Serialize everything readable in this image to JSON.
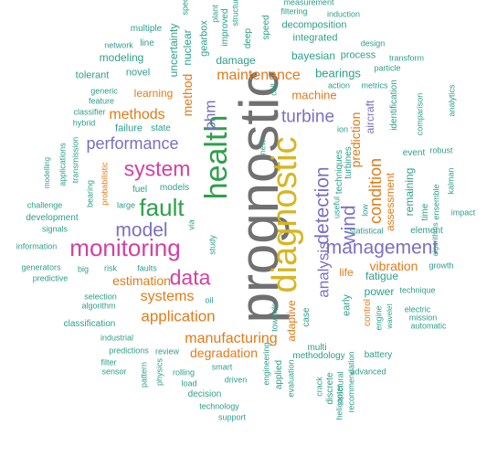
{
  "palette": {
    "green": "#2ea04a",
    "teal": "#2e9e8a",
    "orange": "#e07b1a",
    "purple": "#7b6fc1",
    "magenta": "#d53fa3",
    "yellow": "#d8b620",
    "gray": "#707070",
    "blue": "#3a6fb4"
  },
  "words": [
    {
      "text": "prognostic",
      "color": "gray"
    },
    {
      "text": "diagnostic",
      "color": "yellow"
    },
    {
      "text": "health",
      "color": "green"
    },
    {
      "text": "monitoring",
      "color": "magenta"
    },
    {
      "text": "fault",
      "color": "green"
    },
    {
      "text": "system",
      "color": "magenta"
    },
    {
      "text": "management",
      "color": "purple"
    },
    {
      "text": "data",
      "color": "magenta"
    },
    {
      "text": "detection",
      "color": "purple"
    },
    {
      "text": "model",
      "color": "purple"
    },
    {
      "text": "wind",
      "color": "purple"
    },
    {
      "text": "turbine",
      "color": "purple"
    },
    {
      "text": "condition",
      "color": "orange"
    },
    {
      "text": "performance",
      "color": "purple"
    },
    {
      "text": "maintenance",
      "color": "orange"
    },
    {
      "text": "analysis",
      "color": "purple"
    },
    {
      "text": "application",
      "color": "orange"
    },
    {
      "text": "systems",
      "color": "orange"
    },
    {
      "text": "manufacturing",
      "color": "orange"
    },
    {
      "text": "methods",
      "color": "orange"
    },
    {
      "text": "prediction",
      "color": "orange"
    },
    {
      "text": "phm",
      "color": "purple"
    },
    {
      "text": "degradation",
      "color": "orange"
    },
    {
      "text": "estimation",
      "color": "orange"
    },
    {
      "text": "method",
      "color": "orange"
    },
    {
      "text": "machine",
      "color": "orange"
    },
    {
      "text": "bearings",
      "color": "teal"
    },
    {
      "text": "learning",
      "color": "orange"
    },
    {
      "text": "vibration",
      "color": "orange"
    },
    {
      "text": "fatigue",
      "color": "teal"
    },
    {
      "text": "power",
      "color": "teal"
    },
    {
      "text": "life",
      "color": "orange"
    },
    {
      "text": "adaptive",
      "color": "orange"
    },
    {
      "text": "assessment",
      "color": "orange"
    },
    {
      "text": "remaining",
      "color": "teal"
    },
    {
      "text": "aircraft",
      "color": "purple"
    },
    {
      "text": "bayesian",
      "color": "teal"
    },
    {
      "text": "process",
      "color": "teal"
    },
    {
      "text": "damage",
      "color": "teal"
    },
    {
      "text": "integrated",
      "color": "teal"
    },
    {
      "text": "decomposition",
      "color": "teal"
    },
    {
      "text": "nuclear",
      "color": "teal"
    },
    {
      "text": "gearbox",
      "color": "teal"
    },
    {
      "text": "uncertainty",
      "color": "teal"
    },
    {
      "text": "modeling",
      "color": "teal"
    },
    {
      "text": "novel",
      "color": "teal"
    },
    {
      "text": "tolerant",
      "color": "teal"
    },
    {
      "text": "network",
      "color": "teal"
    },
    {
      "text": "multiple",
      "color": "teal"
    },
    {
      "text": "line",
      "color": "teal"
    },
    {
      "text": "improved",
      "color": "teal"
    },
    {
      "text": "deep",
      "color": "teal"
    },
    {
      "text": "speed",
      "color": "teal"
    },
    {
      "text": "plant",
      "color": "teal"
    },
    {
      "text": "spec",
      "color": "teal"
    },
    {
      "text": "structure",
      "color": "teal"
    },
    {
      "text": "filtering",
      "color": "teal"
    },
    {
      "text": "measurement",
      "color": "teal"
    },
    {
      "text": "induction",
      "color": "teal"
    },
    {
      "text": "design",
      "color": "teal"
    },
    {
      "text": "particle",
      "color": "teal"
    },
    {
      "text": "transform",
      "color": "teal"
    },
    {
      "text": "action",
      "color": "teal"
    },
    {
      "text": "metrics",
      "color": "teal"
    },
    {
      "text": "generic",
      "color": "teal"
    },
    {
      "text": "feature",
      "color": "teal"
    },
    {
      "text": "classifier",
      "color": "teal"
    },
    {
      "text": "hybrid",
      "color": "teal"
    },
    {
      "text": "failure",
      "color": "teal"
    },
    {
      "text": "state",
      "color": "teal"
    },
    {
      "text": "transmission",
      "color": "teal"
    },
    {
      "text": "applications",
      "color": "teal"
    },
    {
      "text": "modelling",
      "color": "teal"
    },
    {
      "text": "probabilistic",
      "color": "orange"
    },
    {
      "text": "bearing",
      "color": "teal"
    },
    {
      "text": "fuel",
      "color": "teal"
    },
    {
      "text": "models",
      "color": "teal"
    },
    {
      "text": "large",
      "color": "teal"
    },
    {
      "text": "challenge",
      "color": "teal"
    },
    {
      "text": "development",
      "color": "teal"
    },
    {
      "text": "signals",
      "color": "teal"
    },
    {
      "text": "information",
      "color": "teal"
    },
    {
      "text": "generators",
      "color": "teal"
    },
    {
      "text": "predictive",
      "color": "teal"
    },
    {
      "text": "big",
      "color": "teal"
    },
    {
      "text": "risk",
      "color": "teal"
    },
    {
      "text": "faults",
      "color": "teal"
    },
    {
      "text": "via",
      "color": "teal"
    },
    {
      "text": "study",
      "color": "teal"
    },
    {
      "text": "oil",
      "color": "teal"
    },
    {
      "text": "selection",
      "color": "teal"
    },
    {
      "text": "algorithm",
      "color": "teal"
    },
    {
      "text": "classification",
      "color": "teal"
    },
    {
      "text": "industrial",
      "color": "teal"
    },
    {
      "text": "predictions",
      "color": "teal"
    },
    {
      "text": "review",
      "color": "teal"
    },
    {
      "text": "filter",
      "color": "teal"
    },
    {
      "text": "sensor",
      "color": "teal"
    },
    {
      "text": "pattern",
      "color": "teal"
    },
    {
      "text": "physics",
      "color": "teal"
    },
    {
      "text": "rolling",
      "color": "teal"
    },
    {
      "text": "load",
      "color": "teal"
    },
    {
      "text": "smart",
      "color": "teal"
    },
    {
      "text": "driven",
      "color": "teal"
    },
    {
      "text": "decision",
      "color": "teal"
    },
    {
      "text": "technology",
      "color": "teal"
    },
    {
      "text": "support",
      "color": "teal"
    },
    {
      "text": "engineering",
      "color": "teal"
    },
    {
      "text": "applied",
      "color": "teal"
    },
    {
      "text": "evaluation",
      "color": "teal"
    },
    {
      "text": "towards",
      "color": "teal"
    },
    {
      "text": "case",
      "color": "teal"
    },
    {
      "text": "crack",
      "color": "teal"
    },
    {
      "text": "discrete",
      "color": "teal"
    },
    {
      "text": "structural",
      "color": "teal"
    },
    {
      "text": "helicopter",
      "color": "teal"
    },
    {
      "text": "recommendation",
      "color": "teal"
    },
    {
      "text": "methodology",
      "color": "teal"
    },
    {
      "text": "multi",
      "color": "teal"
    },
    {
      "text": "battery",
      "color": "teal"
    },
    {
      "text": "advanced",
      "color": "teal"
    },
    {
      "text": "early",
      "color": "teal"
    },
    {
      "text": "control",
      "color": "orange"
    },
    {
      "text": "engine",
      "color": "teal"
    },
    {
      "text": "wavelet",
      "color": "teal"
    },
    {
      "text": "electric",
      "color": "teal"
    },
    {
      "text": "mission",
      "color": "teal"
    },
    {
      "text": "automatic",
      "color": "teal"
    },
    {
      "text": "technique",
      "color": "teal"
    },
    {
      "text": "growth",
      "color": "teal"
    },
    {
      "text": "element",
      "color": "teal"
    },
    {
      "text": "algorithms",
      "color": "teal"
    },
    {
      "text": "impact",
      "color": "teal"
    },
    {
      "text": "kalman",
      "color": "teal"
    },
    {
      "text": "robust",
      "color": "teal"
    },
    {
      "text": "event",
      "color": "teal"
    },
    {
      "text": "time",
      "color": "teal"
    },
    {
      "text": "ensemble",
      "color": "teal"
    },
    {
      "text": "comparison",
      "color": "teal"
    },
    {
      "text": "analytics",
      "color": "teal"
    },
    {
      "text": "identification",
      "color": "teal"
    },
    {
      "text": "techniques",
      "color": "teal"
    },
    {
      "text": "turbines",
      "color": "teal"
    },
    {
      "text": "useful",
      "color": "teal"
    },
    {
      "text": "low",
      "color": "teal"
    },
    {
      "text": "statistical",
      "color": "teal"
    },
    {
      "text": "ion",
      "color": "teal"
    },
    {
      "text": "call",
      "color": "teal"
    },
    {
      "text": "new",
      "color": "teal"
    },
    {
      "text": "prediction",
      "color": "teal"
    }
  ]
}
